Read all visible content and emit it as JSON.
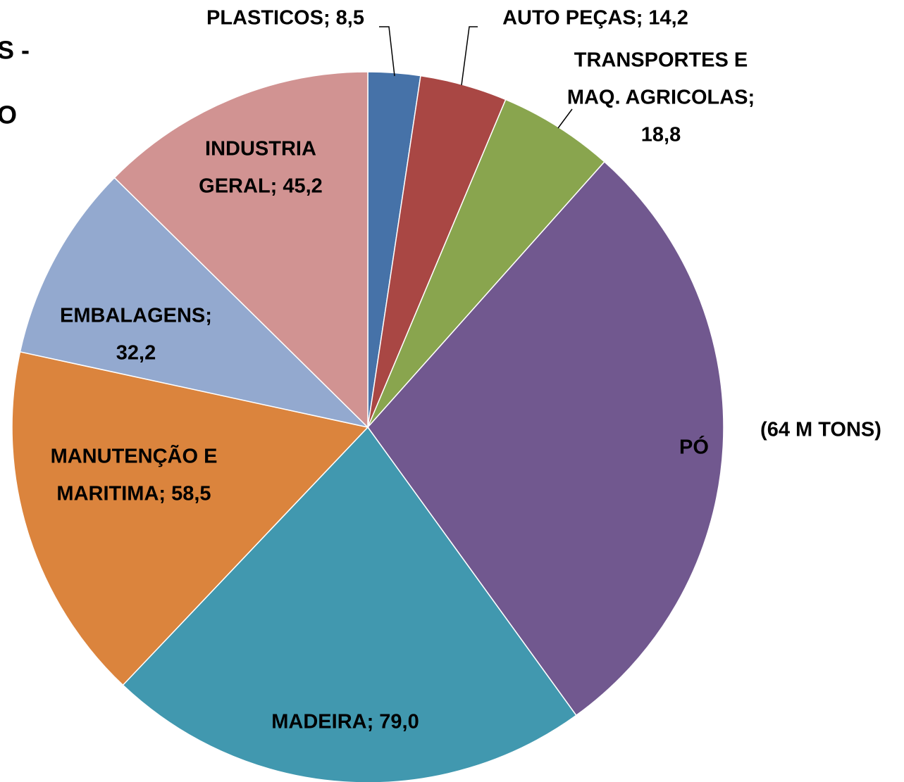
{
  "chart_data": {
    "type": "pie",
    "title_lines": [
      "S -",
      "O"
    ],
    "annotation": "(64 M TONS)",
    "categories": [
      "PLASTICOS",
      "AUTO PEÇAS",
      "TRANSPORTES E MAQ. AGRICOLAS",
      "PÓ",
      "MADEIRA",
      "MANUTENÇÃO E MARITIMA",
      "EMBALAGENS",
      "INDUSTRIA GERAL"
    ],
    "values": [
      8.5,
      14.2,
      18.8,
      102,
      79.0,
      58.5,
      32.2,
      45.2
    ],
    "value_labels": [
      [
        "PLASTICOS; 8,5"
      ],
      [
        "AUTO PEÇAS; 14,2"
      ],
      [
        "TRANSPORTES E",
        "MAQ. AGRICOLAS;",
        "18,8"
      ],
      [
        "PÓ"
      ],
      [
        "MADEIRA; 79,0"
      ],
      [
        "MANUTENÇÃO E",
        "MARITIMA; 58,5"
      ],
      [
        "EMBALAGENS;",
        "32,2"
      ],
      [
        "INDUSTRIA",
        "GERAL; 45,2"
      ]
    ],
    "colors": [
      "#4672a8",
      "#a94744",
      "#89a54e",
      "#71588f",
      "#4198af",
      "#db843d",
      "#93a9cf",
      "#d19392"
    ]
  }
}
